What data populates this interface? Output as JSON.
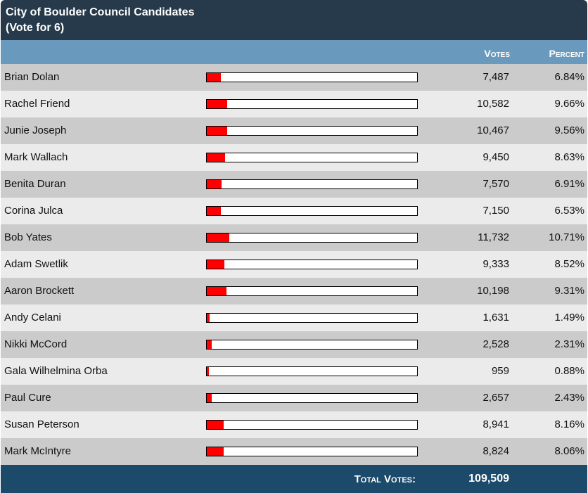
{
  "title": "City of Boulder Council Candidates",
  "subtitle": "(Vote for 6)",
  "columns": {
    "votes": "Votes",
    "percent": "Percent"
  },
  "bar_colors": {
    "fill": "#ff0000",
    "empty": "#ffffff"
  },
  "candidates": [
    {
      "name": "Brian Dolan",
      "votes": "7,487",
      "percent": "6.84%",
      "pct": 6.84
    },
    {
      "name": "Rachel Friend",
      "votes": "10,582",
      "percent": "9.66%",
      "pct": 9.66
    },
    {
      "name": "Junie Joseph",
      "votes": "10,467",
      "percent": "9.56%",
      "pct": 9.56
    },
    {
      "name": "Mark Wallach",
      "votes": "9,450",
      "percent": "8.63%",
      "pct": 8.63
    },
    {
      "name": "Benita Duran",
      "votes": "7,570",
      "percent": "6.91%",
      "pct": 6.91
    },
    {
      "name": "Corina Julca",
      "votes": "7,150",
      "percent": "6.53%",
      "pct": 6.53
    },
    {
      "name": "Bob Yates",
      "votes": "11,732",
      "percent": "10.71%",
      "pct": 10.71
    },
    {
      "name": "Adam Swetlik",
      "votes": "9,333",
      "percent": "8.52%",
      "pct": 8.52
    },
    {
      "name": "Aaron Brockett",
      "votes": "10,198",
      "percent": "9.31%",
      "pct": 9.31
    },
    {
      "name": "Andy Celani",
      "votes": "1,631",
      "percent": "1.49%",
      "pct": 1.49
    },
    {
      "name": "Nikki McCord",
      "votes": "2,528",
      "percent": "2.31%",
      "pct": 2.31
    },
    {
      "name": "Gala Wilhelmina Orba",
      "votes": "959",
      "percent": "0.88%",
      "pct": 0.88
    },
    {
      "name": "Paul Cure",
      "votes": "2,657",
      "percent": "2.43%",
      "pct": 2.43
    },
    {
      "name": "Susan Peterson",
      "votes": "8,941",
      "percent": "8.16%",
      "pct": 8.16
    },
    {
      "name": "Mark McIntyre",
      "votes": "8,824",
      "percent": "8.06%",
      "pct": 8.06
    }
  ],
  "footer": {
    "label": "Total Votes:",
    "total": "109,509"
  }
}
